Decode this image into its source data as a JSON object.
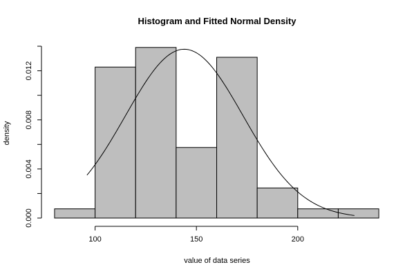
{
  "chart_data": {
    "type": "bar",
    "title": "Histogram and Fitted Normal Density",
    "xlabel": "value of data series",
    "ylabel": "density",
    "bins": [
      {
        "from": 80,
        "to": 100,
        "density": 0.00075
      },
      {
        "from": 100,
        "to": 120,
        "density": 0.0123
      },
      {
        "from": 120,
        "to": 140,
        "density": 0.0139
      },
      {
        "from": 140,
        "to": 160,
        "density": 0.00575
      },
      {
        "from": 160,
        "to": 180,
        "density": 0.0131
      },
      {
        "from": 180,
        "to": 200,
        "density": 0.00245
      },
      {
        "from": 200,
        "to": 220,
        "density": 0.00075
      },
      {
        "from": 220,
        "to": 240,
        "density": 0.00075
      }
    ],
    "normal_fit": {
      "mean": 144,
      "sd": 29,
      "x_from": 96,
      "x_to": 228
    },
    "x_ticks": [
      100,
      150,
      200
    ],
    "x_tick_labels": [
      "100",
      "150",
      "200"
    ],
    "y_ticks": [
      0.0,
      0.004,
      0.008,
      0.012
    ],
    "y_tick_labels": [
      "0.000",
      "0.004",
      "0.008",
      "0.012"
    ],
    "y_minor_ticks": [
      0.002,
      0.006,
      0.01,
      0.014
    ],
    "xlim": [
      79,
      241
    ],
    "ylim": [
      0,
      0.014
    ],
    "bar_color": "#bebebe",
    "grid": false,
    "legend": "none"
  }
}
